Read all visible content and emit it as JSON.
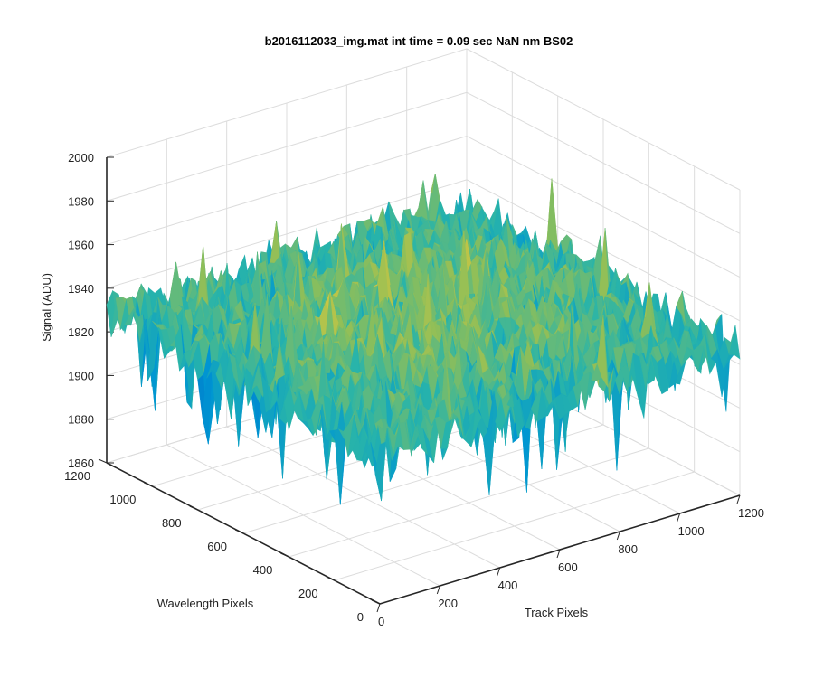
{
  "chart_data": {
    "type": "surface",
    "title": "b2016112033_img.mat int time = 0.09 sec  NaN nm BS02",
    "xlabel": "Track Pixels",
    "ylabel": "Wavelength Pixels",
    "zlabel": "Signal (ADU)",
    "xlim": [
      0,
      1200
    ],
    "ylim": [
      0,
      1200
    ],
    "zlim": [
      1860,
      2000
    ],
    "x_ticks": [
      "0",
      "200",
      "400",
      "600",
      "800",
      "1000",
      "1200"
    ],
    "y_ticks": [
      "0",
      "200",
      "400",
      "600",
      "800",
      "1000",
      "1200"
    ],
    "z_ticks": [
      "1860",
      "1880",
      "1900",
      "1920",
      "1940",
      "1960",
      "1980",
      "2000"
    ],
    "grid": true,
    "colormap": "parula",
    "colors": {
      "low": "#0072bd",
      "mid": "#27a9b6",
      "high": "#c9c34a"
    },
    "surface": {
      "mean_signal": 1928,
      "noise_range": [
        1870,
        1980
      ]
    }
  }
}
